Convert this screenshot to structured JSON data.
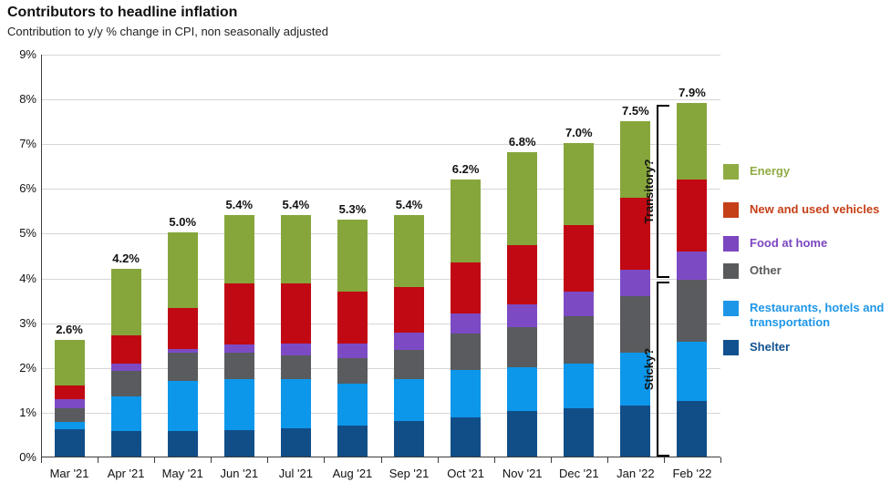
{
  "title": "Contributors to headline inflation",
  "subtitle": "Contribution to y/y % change in CPI, non seasonally adjusted",
  "chart_data": {
    "type": "bar",
    "stacked": true,
    "title": "Contributors to headline inflation",
    "subtitle": "Contribution to y/y % change in CPI, non seasonally adjusted",
    "xlabel": "",
    "ylabel": "",
    "ylim": [
      0,
      9
    ],
    "ytick_labels": [
      "0%",
      "1%",
      "2%",
      "3%",
      "4%",
      "5%",
      "6%",
      "7%",
      "8%",
      "9%"
    ],
    "grid": true,
    "legend_position": "right",
    "categories": [
      "Mar '21",
      "Apr '21",
      "May '21",
      "Jun '21",
      "Jul '21",
      "Aug '21",
      "Sep '21",
      "Oct '21",
      "Nov '21",
      "Dec '21",
      "Jan '22",
      "Feb '22"
    ],
    "total_labels": [
      "2.6%",
      "4.2%",
      "5.0%",
      "5.4%",
      "5.4%",
      "5.3%",
      "5.4%",
      "6.2%",
      "6.8%",
      "7.0%",
      "7.5%",
      "7.9%"
    ],
    "series": [
      {
        "name": "Shelter",
        "color": "#114e88",
        "values": [
          0.62,
          0.57,
          0.57,
          0.6,
          0.63,
          0.7,
          0.8,
          0.87,
          1.01,
          1.07,
          1.14,
          1.25
        ]
      },
      {
        "name": "Restaurants, hotels and transportation",
        "color": "#0d97eb",
        "values": [
          0.15,
          0.77,
          1.12,
          1.13,
          1.11,
          0.93,
          0.94,
          1.06,
          0.99,
          1.0,
          1.19,
          1.31
        ]
      },
      {
        "name": "Other",
        "color": "#595b5e",
        "values": [
          0.3,
          0.58,
          0.63,
          0.59,
          0.53,
          0.57,
          0.64,
          0.82,
          0.89,
          1.07,
          1.25,
          1.39
        ]
      },
      {
        "name": "Food at home",
        "color": "#7c4bc4",
        "values": [
          0.22,
          0.15,
          0.08,
          0.18,
          0.26,
          0.32,
          0.4,
          0.45,
          0.52,
          0.55,
          0.6,
          0.64
        ]
      },
      {
        "name": "New and used vehicles",
        "color": "#c00913",
        "values": [
          0.3,
          0.63,
          0.92,
          1.37,
          1.34,
          1.17,
          1.0,
          1.13,
          1.31,
          1.48,
          1.6,
          1.6
        ]
      },
      {
        "name": "Energy",
        "color": "#86a63c",
        "values": [
          1.01,
          1.5,
          1.68,
          1.53,
          1.53,
          1.61,
          1.62,
          1.87,
          2.08,
          1.83,
          1.72,
          1.71
        ]
      }
    ],
    "annotations": [
      {
        "label": "Transitory?",
        "value_range": [
          4.02,
          7.87
        ],
        "target": "Feb '22"
      },
      {
        "label": "Sticky?",
        "value_range": [
          0.02,
          3.93
        ],
        "target": "Feb '22"
      }
    ]
  },
  "legend": {
    "items": [
      {
        "label": "Energy",
        "color": "#8fac43"
      },
      {
        "label": "New and used vehicles",
        "color": "#c54017"
      },
      {
        "label": "Food at home",
        "color": "#7c46c0"
      },
      {
        "label": "Other",
        "color": "#595a5c"
      },
      {
        "label": "Restaurants, hotels and transportation",
        "color": "#1e96e8"
      },
      {
        "label": "Shelter",
        "color": "#11518f"
      }
    ]
  }
}
